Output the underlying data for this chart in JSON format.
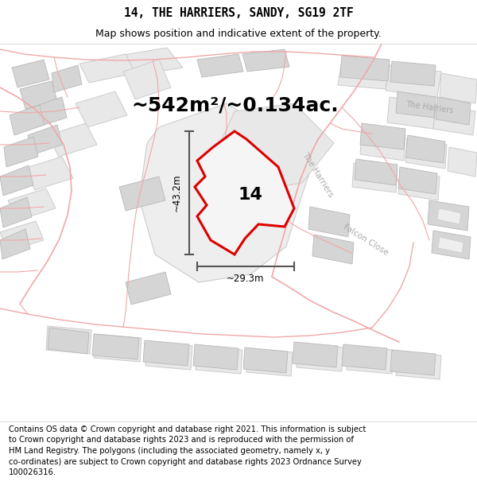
{
  "title_line1": "14, THE HARRIERS, SANDY, SG19 2TF",
  "title_line2": "Map shows position and indicative extent of the property.",
  "footer_lines": [
    "Contains OS data © Crown copyright and database right 2021. This information is subject to Crown copyright and database rights 2023 and is reproduced with the permission of",
    "HM Land Registry. The polygons (including the associated geometry, namely x, y co-ordinates) are subject to Crown copyright and database rights 2023 Ordnance Survey",
    "100026316."
  ],
  "area_text": "~542m²/~0.134ac.",
  "label_14": "14",
  "dim_height": "~43.2m",
  "dim_width": "~29.3m",
  "street_harriers_mid": "The Harriers",
  "street_falcon": "Falcon Close",
  "street_harriers_top": "The Harriers",
  "map_bg": "#ffffff",
  "road_color": "#f0a8a8",
  "road_outline_color": "#e08888",
  "building_fill": "#e8e8e8",
  "building_edge": "#c8c8c8",
  "parcel_fill": "#e0e0e0",
  "parcel_edge": "#b8b8b8",
  "property_fill": "#f5f5f5",
  "property_outline": "#dd0000",
  "title_bg": "#ffffff",
  "footer_bg": "#ffffff",
  "dim_color": "#555555",
  "street_color": "#aaaaaa",
  "title_fontsize": 10.5,
  "subtitle_fontsize": 9,
  "area_fontsize": 18,
  "label_fontsize": 16,
  "footer_fontsize": 7.2,
  "property_polygon_x": [
    270,
    285,
    300,
    292,
    310,
    322,
    348,
    368,
    358,
    330,
    312,
    280,
    255,
    240,
    248,
    258,
    268,
    270
  ],
  "property_polygon_y": [
    348,
    368,
    352,
    330,
    316,
    330,
    308,
    268,
    244,
    248,
    228,
    216,
    228,
    268,
    290,
    306,
    318,
    348
  ]
}
